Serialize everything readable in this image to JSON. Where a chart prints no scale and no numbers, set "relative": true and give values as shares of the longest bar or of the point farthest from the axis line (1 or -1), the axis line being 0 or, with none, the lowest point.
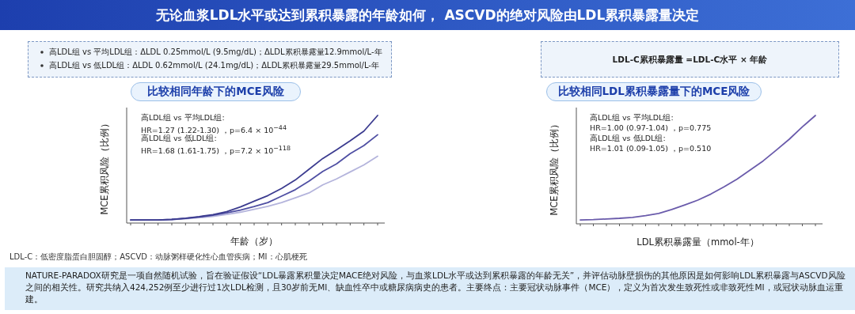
{
  "chart_data": [
    {
      "type": "other",
      "title": "无论血浆LDL水平或达到累积暴露的年龄如何， ASCVD的绝对风险由LDL累积暴露量决定",
      "annotations": [
        "高LDL组 vs 平均LDL组：ΔLDL 0.25mmol/L (9.5mg/dL)；ΔLDL累积暴露量12.9mmol/L-年",
        "高LDL组 vs 低LDL组：ΔLDL 0.62mmol/L (24.1mg/dL)；ΔLDL累积暴露量29.5mmol/L-年",
        "LDL-C：低密度脂蛋白胆固醇；ASCVD：动脉粥样硬化性心血管疾病；MI：心肌梗死",
        "NATURE-PARADOX研究是一项自然随机试验，旨在验证假设“LDL暴露累积量决定MACE绝对风险，与血浆LDL水平或达到累积暴露的年龄无关”，并评估动脉壁损伤的其他原因是如何影响LDL累积暴露与ASCVD风险之间的相关性。研究共纳入424,252例至少进行过1次LDL检测，且30岁前无MI、缺血性卒中或糖尿病病史的患者。主要终点：主要冠状动脉事件（MCE），定义为首次发生致死性或非致死性MI，或冠状动脉血运重建。"
      ]
    },
    {
      "type": "line",
      "title": "比较相同年龄下的MCE风险",
      "xlabel": "年龄（岁）",
      "ylabel": "MCE累积风险（比例）",
      "relative": true,
      "annotations": [
        "高LDL组 vs 平均LDL组:",
        "HR=1.27 (1.22-1.30) ，p=6.4 × 10$^{−44}$",
        "高LDL组 vs 低LDL组:",
        "HR=1.68 (1.61-1.75) ，p=7.2 × 10$^{−118}$"
      ],
      "categories": [
        null,
        null,
        null,
        null,
        null,
        null,
        null,
        null,
        null,
        null,
        null,
        null,
        null,
        null,
        null,
        null,
        null,
        null,
        null
      ],
      "series": [
        {
          "color": "#3b3b8f",
          "values": [
            0.029,
            0.029,
            0.029,
            0.034,
            0.045,
            0.06,
            0.078,
            0.106,
            0.15,
            0.203,
            0.255,
            0.322,
            0.4,
            0.5,
            0.6,
            0.68,
            0.765,
            0.855,
            1
          ]
        },
        {
          "color": "#4f4fa3",
          "values": [
            0.029,
            0.029,
            0.029,
            0.033,
            0.043,
            0.056,
            0.072,
            0.094,
            0.121,
            0.153,
            0.19,
            0.25,
            0.31,
            0.39,
            0.48,
            0.55,
            0.645,
            0.72,
            0.821
          ]
        },
        {
          "color": "#b4b4dc",
          "values": [
            null,
            null,
            null,
            0.033,
            0.04,
            0.05,
            0.062,
            0.08,
            0.101,
            0.128,
            0.155,
            0.19,
            0.235,
            0.28,
            0.355,
            0.41,
            0.475,
            0.54,
            0.621
          ]
        }
      ]
    },
    {
      "type": "line",
      "title": "比较相同LDL累积暴露量下的MCE风险",
      "subtitle": "LDL-C累积暴露量 =LDL-C水平 × 年龄",
      "xlabel": "LDL累积暴露量（mmol-年）",
      "ylabel": "MCE累积风险（比例）",
      "relative": true,
      "annotations": [
        "高LDL组 vs 平均LDL组:",
        "HR=1.00 (0.97-1.04) ，p=0.775",
        "高LDL组 vs 低LDL组:",
        "HR=1.01 (0.09-1.05) ，p=0.510"
      ],
      "categories": [
        null,
        null,
        null,
        null,
        null,
        null,
        null,
        null,
        null,
        null,
        null,
        null,
        null,
        null,
        null,
        null,
        null,
        null,
        null
      ],
      "series": [
        {
          "color": "#6a5bab",
          "values": [
            0.036,
            0.039,
            0.045,
            0.051,
            0.06,
            0.075,
            0.096,
            0.132,
            0.174,
            0.219,
            0.275,
            0.341,
            0.413,
            0.497,
            0.581,
            0.68,
            0.781,
            0.895,
            1
          ]
        }
      ]
    }
  ]
}
